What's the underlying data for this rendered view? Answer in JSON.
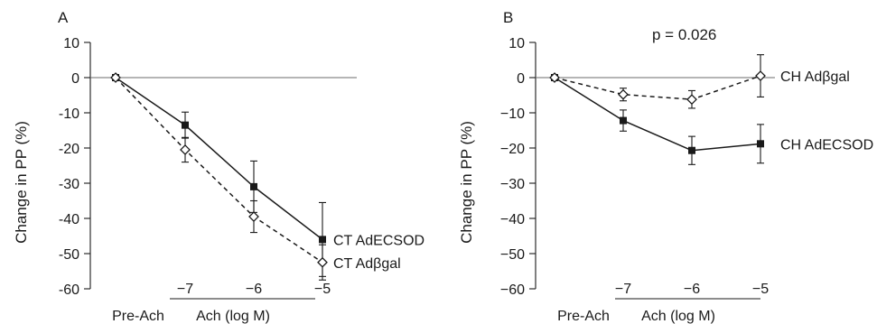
{
  "chart_data": [
    {
      "type": "line",
      "panel_letter": "A",
      "ylabel": "Change in PP (%)",
      "xlabel": "Ach (log M)",
      "x_categories": [
        "Pre-Ach",
        "−7",
        "−6",
        "−5"
      ],
      "ylim": [
        -60,
        10
      ],
      "yticks": [
        "10",
        "0",
        "-10",
        "-20",
        "-30",
        "-40",
        "-50",
        "-60"
      ],
      "annotation": "",
      "series": [
        {
          "name": "CT AdECSOD",
          "style": "solid",
          "marker": "filled-square",
          "values": [
            0,
            -13.5,
            -31,
            -46
          ],
          "error": [
            0,
            3.7,
            7.3,
            10.5
          ]
        },
        {
          "name": "CT Adβgal",
          "style": "dashed",
          "marker": "open-diamond",
          "values": [
            0,
            -20.5,
            -39.5,
            -52.5
          ],
          "error": [
            0,
            3.5,
            4.5,
            5
          ]
        }
      ]
    },
    {
      "type": "line",
      "panel_letter": "B",
      "ylabel": "Change in PP (%)",
      "xlabel": "Ach (log M)",
      "x_categories": [
        "Pre-Ach",
        "−7",
        "−6",
        "−5"
      ],
      "ylim": [
        -60,
        10
      ],
      "yticks": [
        "10",
        "0",
        "−10",
        "−20",
        "−30",
        "−40",
        "−50",
        "−60"
      ],
      "annotation": "p = 0.026",
      "series": [
        {
          "name": "CH AdECSOD",
          "style": "solid",
          "marker": "filled-square",
          "values": [
            0,
            -12.2,
            -20.7,
            -18.8
          ],
          "error": [
            0,
            3,
            4,
            5.5
          ]
        },
        {
          "name": "CH Adβgal",
          "style": "dashed",
          "marker": "open-diamond",
          "values": [
            0,
            -4.8,
            -6.2,
            0.5
          ],
          "error": [
            0,
            1.8,
            2.5,
            6
          ]
        }
      ]
    }
  ]
}
